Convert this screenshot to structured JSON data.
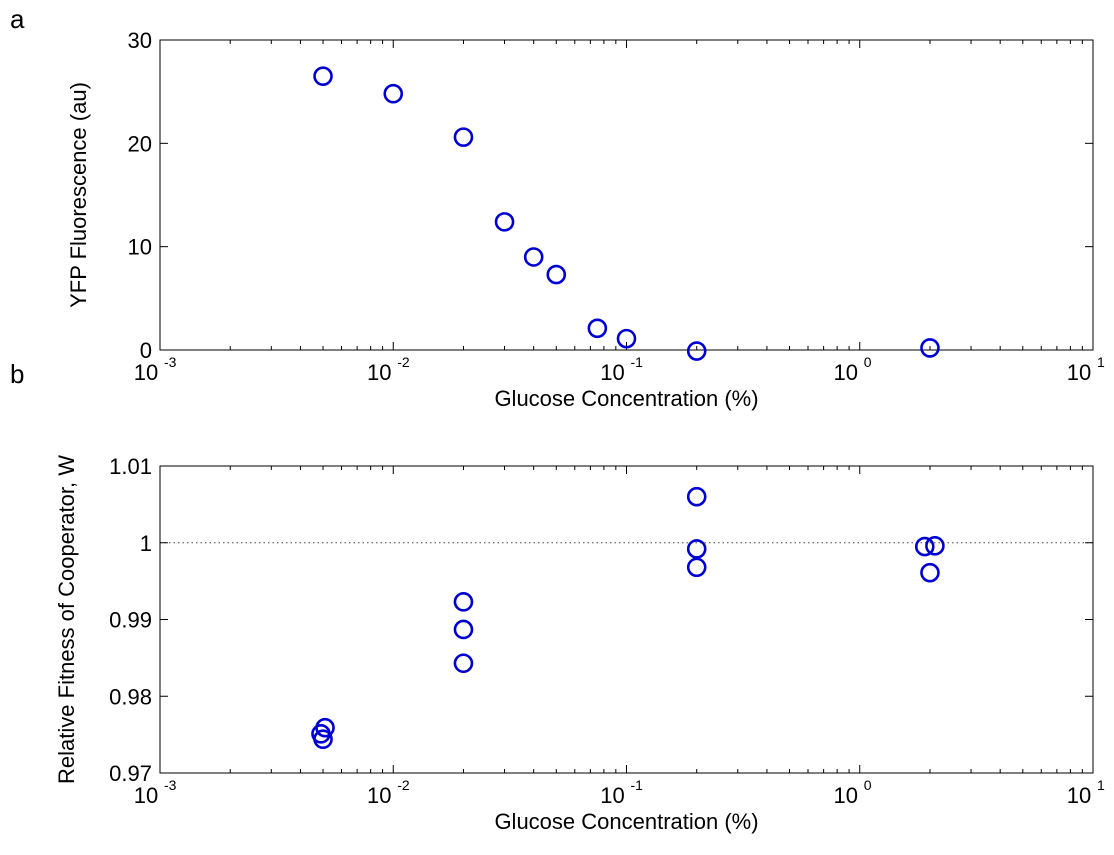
{
  "chart_data": [
    {
      "type": "scatter",
      "panel_label": "a",
      "xlabel": "Glucose Concentration (%)",
      "ylabel": "YFP Fluorescence (au)",
      "xscale": "log",
      "xlim": [
        0.001,
        10
      ],
      "ylim": [
        0,
        30
      ],
      "x_ticks": [
        {
          "base": "10",
          "exp": "-3",
          "value": 0.001
        },
        {
          "base": "10",
          "exp": "-2",
          "value": 0.01
        },
        {
          "base": "10",
          "exp": "-1",
          "value": 0.1
        },
        {
          "base": "10",
          "exp": "0",
          "value": 1
        },
        {
          "base": "10",
          "exp": "1",
          "value": 10
        }
      ],
      "y_ticks": [
        {
          "label": "0",
          "value": 0
        },
        {
          "label": "10",
          "value": 10
        },
        {
          "label": "20",
          "value": 20
        },
        {
          "label": "30",
          "value": 30
        }
      ],
      "grid": false,
      "marker_color": "#0000d4",
      "series": [
        {
          "points": [
            {
              "x": 0.005,
              "y": 26.5
            },
            {
              "x": 0.01,
              "y": 24.8
            },
            {
              "x": 0.02,
              "y": 20.6
            },
            {
              "x": 0.03,
              "y": 12.4
            },
            {
              "x": 0.04,
              "y": 9.0
            },
            {
              "x": 0.05,
              "y": 7.3
            },
            {
              "x": 0.075,
              "y": 2.1
            },
            {
              "x": 0.1,
              "y": 1.1
            },
            {
              "x": 0.2,
              "y": -0.1
            },
            {
              "x": 2,
              "y": 0.2
            }
          ]
        }
      ]
    },
    {
      "type": "scatter",
      "panel_label": "b",
      "xlabel": "Glucose Concentration (%)",
      "ylabel": "Relative Fitness of Cooperator, W",
      "xscale": "log",
      "xlim": [
        0.001,
        10
      ],
      "ylim": [
        0.97,
        1.01
      ],
      "x_ticks": [
        {
          "base": "10",
          "exp": "-3",
          "value": 0.001
        },
        {
          "base": "10",
          "exp": "-2",
          "value": 0.01
        },
        {
          "base": "10",
          "exp": "-1",
          "value": 0.1
        },
        {
          "base": "10",
          "exp": "0",
          "value": 1
        },
        {
          "base": "10",
          "exp": "1",
          "value": 10
        }
      ],
      "y_ticks": [
        {
          "label": "0.97",
          "value": 0.97
        },
        {
          "label": "0.98",
          "value": 0.98
        },
        {
          "label": "0.99",
          "value": 0.99
        },
        {
          "label": "1",
          "value": 1.0
        },
        {
          "label": "1.01",
          "value": 1.01
        }
      ],
      "reference_line_y": 1.0,
      "grid": false,
      "marker_color": "#0000d4",
      "series": [
        {
          "points": [
            {
              "x": 0.0049,
              "y": 0.9751
            },
            {
              "x": 0.0051,
              "y": 0.9759
            },
            {
              "x": 0.005,
              "y": 0.9744
            },
            {
              "x": 0.02,
              "y": 0.9923
            },
            {
              "x": 0.02,
              "y": 0.9887
            },
            {
              "x": 0.02,
              "y": 0.9843
            },
            {
              "x": 0.2,
              "y": 1.006
            },
            {
              "x": 0.2,
              "y": 0.9992
            },
            {
              "x": 0.2,
              "y": 0.9968
            },
            {
              "x": 1.9,
              "y": 0.9995
            },
            {
              "x": 2.1,
              "y": 0.9996
            },
            {
              "x": 2.0,
              "y": 0.9961
            }
          ]
        }
      ]
    }
  ]
}
